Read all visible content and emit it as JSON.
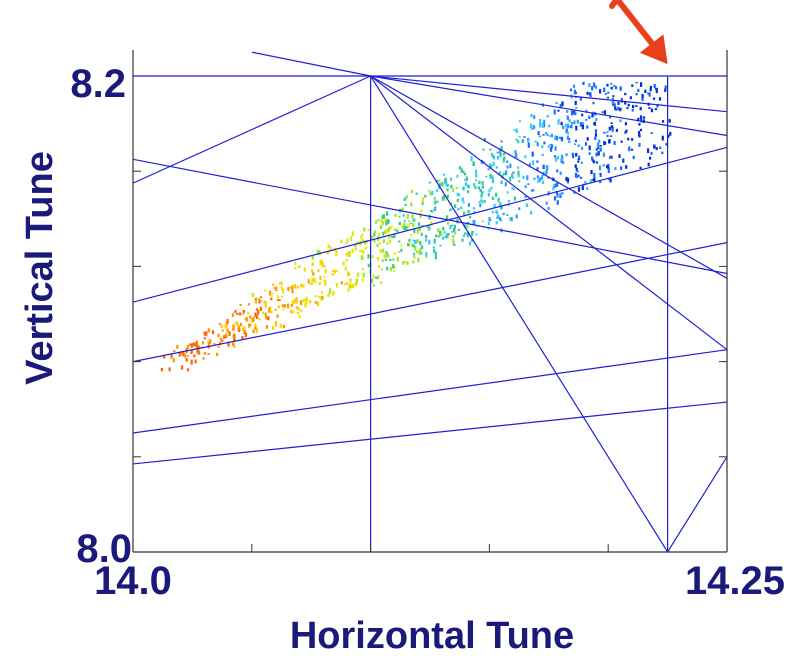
{
  "chart_data": {
    "type": "scatter",
    "xlabel": "Horizontal Tune",
    "ylabel": "Vertical Tune",
    "xlim": [
      14.0,
      14.25
    ],
    "ylim": [
      8.0,
      8.2
    ],
    "x_tick_labels": [
      "14.0",
      "14.25"
    ],
    "y_tick_labels": [
      "8.2",
      "8.0"
    ],
    "x_minor_ticks": [
      14.05,
      14.1,
      14.15,
      14.2
    ],
    "y_minor_ticks": [
      8.04,
      8.08,
      8.12,
      8.16
    ],
    "resonance_lines": [
      {
        "p1": [
          14.1,
          8.0
        ],
        "p2": [
          14.1,
          8.2
        ]
      },
      {
        "p1": [
          14.225,
          8.0
        ],
        "p2": [
          14.225,
          8.2
        ]
      },
      {
        "p1": [
          14.0,
          8.2
        ],
        "p2": [
          14.25,
          8.2
        ]
      },
      {
        "p1": [
          14.1,
          8.2
        ],
        "p2": [
          14.225,
          8.0
        ]
      },
      {
        "p1": [
          14.225,
          8.0
        ],
        "p2": [
          14.25,
          8.04
        ]
      },
      {
        "p1": [
          14.0,
          8.155
        ],
        "p2": [
          14.1,
          8.2
        ]
      },
      {
        "p1": [
          14.1,
          8.2
        ],
        "p2": [
          14.25,
          8.185
        ]
      },
      {
        "p1": [
          14.1,
          8.2
        ],
        "p2": [
          14.25,
          8.175
        ]
      },
      {
        "p1": [
          14.1,
          8.2
        ],
        "p2": [
          14.25,
          8.115
        ]
      },
      {
        "p1": [
          14.1,
          8.2
        ],
        "p2": [
          14.25,
          8.085
        ]
      },
      {
        "p1": [
          14.05,
          8.21
        ],
        "p2": [
          14.1,
          8.2
        ]
      },
      {
        "p1": [
          14.0,
          8.105
        ],
        "p2": [
          14.25,
          8.17
        ]
      },
      {
        "p1": [
          14.0,
          8.08
        ],
        "p2": [
          14.25,
          8.13
        ]
      },
      {
        "p1": [
          14.0,
          8.05
        ],
        "p2": [
          14.25,
          8.085
        ]
      },
      {
        "p1": [
          14.0,
          8.037
        ],
        "p2": [
          14.25,
          8.063
        ]
      },
      {
        "p1": [
          14.0,
          8.165
        ],
        "p2": [
          14.25,
          8.117
        ]
      }
    ],
    "footprint": {
      "core": [
        {
          "from": [
            14.015,
            8.08
          ],
          "to": [
            14.225,
            8.195
          ]
        }
      ],
      "approx_points": 1100,
      "color_scale": [
        "#ff6600",
        "#ff9900",
        "#ffcc00",
        "#e6e600",
        "#99e633",
        "#33cc99",
        "#33ccff",
        "#3399ff",
        "#1a66ff",
        "#0033cc"
      ]
    },
    "annotation_arrow": {
      "from": [
        14.2,
        8.237
      ],
      "to": [
        14.225,
        8.205
      ],
      "color": "#e8401c"
    },
    "colors": {
      "lines": "#1f1fd6",
      "frame": "#1f1fd6",
      "text": "#1a1a7a"
    }
  }
}
